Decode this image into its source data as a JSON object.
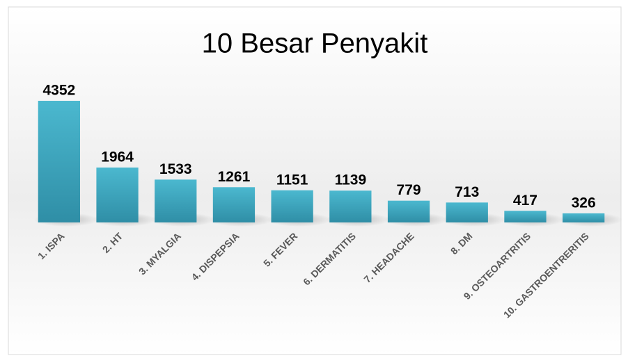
{
  "chart_data": {
    "type": "bar",
    "title": "10 Besar Penyakit",
    "categories": [
      "1. ISPA",
      "2. HT",
      "3. MYALGIA",
      "4. DISPEPSIA",
      "5. FEVER",
      "6. DERMATITIS",
      "7. HEADACHE",
      "8. DM",
      "9. OSTEOARTRITIS",
      "10. GASTROENTRERITIS"
    ],
    "values": [
      4352,
      1964,
      1533,
      1261,
      1151,
      1139,
      779,
      713,
      417,
      326
    ],
    "color": "#3fa6bd"
  }
}
